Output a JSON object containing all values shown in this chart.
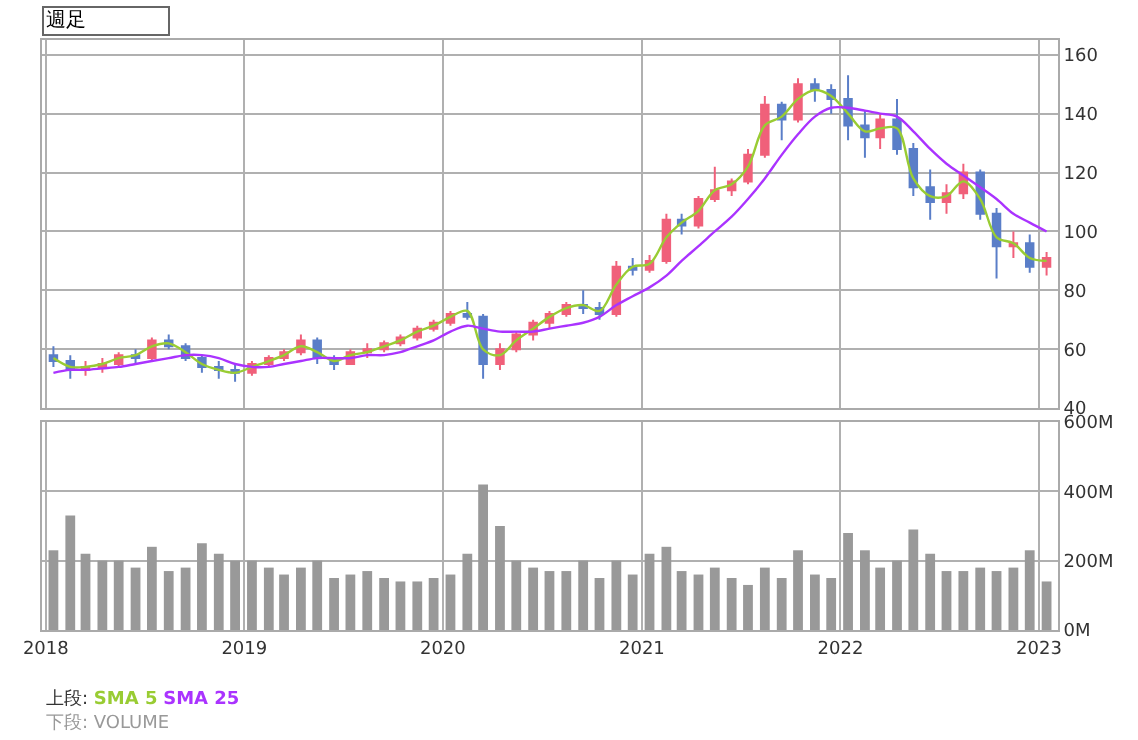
{
  "chart_data": [
    {
      "type": "candlestick",
      "annotations": [
        "週足",
        "上段:"
      ],
      "legend": "bottom left",
      "grid": true,
      "tick_labels": "y",
      "x": [
        "2018-01-15",
        "2018-02-15",
        "2018-03-15",
        "2018-04-15",
        "2018-05-15",
        "2018-06-15",
        "2018-07-15",
        "2018-08-15",
        "2018-09-15",
        "2018-10-15",
        "2018-11-15",
        "2018-12-15",
        "2019-01-15",
        "2019-02-15",
        "2019-03-15",
        "2019-04-15",
        "2019-05-15",
        "2019-06-15",
        "2019-07-15",
        "2019-08-15",
        "2019-09-15",
        "2019-10-15",
        "2019-11-15",
        "2019-12-15",
        "2020-01-15",
        "2020-02-15",
        "2020-03-15",
        "2020-04-15",
        "2020-05-15",
        "2020-06-15",
        "2020-07-15",
        "2020-08-15",
        "2020-09-15",
        "2020-10-15",
        "2020-11-15",
        "2020-12-15",
        "2021-01-15",
        "2021-02-15",
        "2021-03-15",
        "2021-04-15",
        "2021-05-15",
        "2021-06-15",
        "2021-07-15",
        "2021-08-15",
        "2021-09-15",
        "2021-10-15",
        "2021-11-15",
        "2021-12-15",
        "2022-01-15",
        "2022-02-15",
        "2022-03-15",
        "2022-04-15",
        "2022-05-15",
        "2022-06-15",
        "2022-07-15",
        "2022-08-15",
        "2022-09-15",
        "2022-10-15",
        "2022-11-15",
        "2022-12-15",
        "2023-01-15"
      ],
      "ohlc": [
        [
          58,
          61,
          54,
          56
        ],
        [
          56,
          58,
          50,
          53
        ],
        [
          53,
          56,
          51,
          54
        ],
        [
          54,
          57,
          52,
          55
        ],
        [
          55,
          59,
          54,
          58
        ],
        [
          58,
          60,
          55,
          57
        ],
        [
          57,
          64,
          56,
          63
        ],
        [
          63,
          65,
          60,
          61
        ],
        [
          61,
          62,
          56,
          57
        ],
        [
          57,
          58,
          52,
          54
        ],
        [
          54,
          56,
          50,
          53
        ],
        [
          53,
          55,
          49,
          52
        ],
        [
          52,
          56,
          51,
          55
        ],
        [
          55,
          58,
          54,
          57
        ],
        [
          57,
          60,
          56,
          59
        ],
        [
          59,
          65,
          58,
          63
        ],
        [
          63,
          64,
          55,
          57
        ],
        [
          57,
          58,
          53,
          55
        ],
        [
          55,
          60,
          55,
          59
        ],
        [
          59,
          62,
          57,
          60
        ],
        [
          60,
          63,
          59,
          62
        ],
        [
          62,
          65,
          61,
          64
        ],
        [
          64,
          68,
          63,
          67
        ],
        [
          67,
          70,
          66,
          69
        ],
        [
          69,
          73,
          68,
          72
        ],
        [
          72,
          76,
          70,
          71
        ],
        [
          71,
          72,
          50,
          55
        ],
        [
          55,
          62,
          53,
          60
        ],
        [
          60,
          66,
          59,
          65
        ],
        [
          65,
          70,
          63,
          69
        ],
        [
          69,
          73,
          67,
          72
        ],
        [
          72,
          76,
          71,
          75
        ],
        [
          75,
          80,
          72,
          74
        ],
        [
          74,
          76,
          70,
          72
        ],
        [
          72,
          90,
          71,
          88
        ],
        [
          88,
          91,
          85,
          87
        ],
        [
          87,
          92,
          86,
          90
        ],
        [
          90,
          106,
          89,
          104
        ],
        [
          104,
          106,
          99,
          102
        ],
        [
          102,
          112,
          101,
          111
        ],
        [
          111,
          122,
          110,
          114
        ],
        [
          114,
          118,
          112,
          117
        ],
        [
          117,
          128,
          116,
          126
        ],
        [
          126,
          146,
          125,
          143
        ],
        [
          143,
          144,
          131,
          138
        ],
        [
          138,
          152,
          137,
          150
        ],
        [
          150,
          152,
          144,
          148
        ],
        [
          148,
          150,
          140,
          145
        ],
        [
          145,
          153,
          131,
          136
        ],
        [
          136,
          141,
          125,
          132
        ],
        [
          132,
          140,
          128,
          138
        ],
        [
          138,
          145,
          126,
          128
        ],
        [
          128,
          130,
          112,
          115
        ],
        [
          115,
          121,
          104,
          110
        ],
        [
          110,
          116,
          106,
          113
        ],
        [
          113,
          123,
          111,
          120
        ],
        [
          120,
          121,
          104,
          106
        ],
        [
          106,
          108,
          84,
          95
        ],
        [
          95,
          100,
          91,
          96
        ],
        [
          96,
          99,
          86,
          88
        ],
        [
          88,
          93,
          85,
          91
        ]
      ],
      "series": [
        {
          "name": "SMA 5",
          "type": "line",
          "color": "#99cc33",
          "values": [
            57,
            54,
            54,
            55,
            57,
            58,
            61,
            62,
            59,
            55,
            53,
            52,
            54,
            56,
            58,
            61,
            59,
            56,
            58,
            59,
            61,
            63,
            66,
            68,
            71,
            73,
            60,
            58,
            63,
            67,
            71,
            74,
            75,
            73,
            82,
            88,
            89,
            98,
            103,
            107,
            114,
            116,
            122,
            136,
            139,
            145,
            148,
            146,
            140,
            134,
            135,
            135,
            118,
            112,
            112,
            117,
            111,
            98,
            96,
            91,
            90
          ]
        },
        {
          "name": "SMA 25",
          "type": "line",
          "color": "#aa33ff",
          "values": [
            52,
            53,
            53,
            53.5,
            54,
            55,
            56,
            57,
            58,
            58,
            57,
            55,
            54,
            54,
            55,
            56,
            57,
            57,
            57,
            58,
            58,
            59,
            61,
            63,
            66,
            68,
            67,
            66,
            66,
            66,
            67,
            68,
            69,
            71,
            75,
            78,
            81,
            85,
            90,
            95,
            100,
            105,
            111,
            118,
            126,
            133,
            139,
            142,
            142,
            141,
            140,
            139,
            134,
            128,
            123,
            119,
            115,
            111,
            106,
            103,
            100
          ]
        }
      ],
      "xlim": [
        "2017-12-25",
        "2023-02-05"
      ],
      "xticks": [
        {
          "value": "2018-01-01",
          "label": null
        },
        {
          "value": "2019-01-01",
          "label": null
        },
        {
          "value": "2020-01-01",
          "label": null
        },
        {
          "value": "2021-01-01",
          "label": null
        },
        {
          "value": "2022-01-01",
          "label": null
        },
        {
          "value": "2023-01-01",
          "label": null
        }
      ],
      "ylim": [
        40,
        165
      ],
      "yticks": [
        40,
        60,
        80,
        100,
        120,
        140,
        160
      ]
    },
    {
      "type": "bar",
      "annotations": [
        "下段: VOLUME"
      ],
      "grid": true,
      "color": "#999999",
      "x": [
        "2018-01-15",
        "2018-02-15",
        "2018-03-15",
        "2018-04-15",
        "2018-05-15",
        "2018-06-15",
        "2018-07-15",
        "2018-08-15",
        "2018-09-15",
        "2018-10-15",
        "2018-11-15",
        "2018-12-15",
        "2019-01-15",
        "2019-02-15",
        "2019-03-15",
        "2019-04-15",
        "2019-05-15",
        "2019-06-15",
        "2019-07-15",
        "2019-08-15",
        "2019-09-15",
        "2019-10-15",
        "2019-11-15",
        "2019-12-15",
        "2020-01-15",
        "2020-02-15",
        "2020-03-15",
        "2020-04-15",
        "2020-05-15",
        "2020-06-15",
        "2020-07-15",
        "2020-08-15",
        "2020-09-15",
        "2020-10-15",
        "2020-11-15",
        "2020-12-15",
        "2021-01-15",
        "2021-02-15",
        "2021-03-15",
        "2021-04-15",
        "2021-05-15",
        "2021-06-15",
        "2021-07-15",
        "2021-08-15",
        "2021-09-15",
        "2021-10-15",
        "2021-11-15",
        "2021-12-15",
        "2022-01-15",
        "2022-02-15",
        "2022-03-15",
        "2022-04-15",
        "2022-05-15",
        "2022-06-15",
        "2022-07-15",
        "2022-08-15",
        "2022-09-15",
        "2022-10-15",
        "2022-11-15",
        "2022-12-15",
        "2023-01-15"
      ],
      "values": [
        230,
        330,
        220,
        200,
        200,
        180,
        240,
        170,
        180,
        250,
        220,
        200,
        200,
        180,
        160,
        180,
        200,
        150,
        160,
        170,
        150,
        140,
        140,
        150,
        160,
        220,
        420,
        300,
        200,
        180,
        170,
        170,
        200,
        150,
        200,
        160,
        220,
        240,
        170,
        160,
        180,
        150,
        130,
        180,
        150,
        230,
        160,
        150,
        280,
        230,
        180,
        200,
        290,
        220,
        170,
        170,
        180,
        170,
        180,
        230,
        140
      ],
      "xlim": [
        "2017-12-25",
        "2023-02-05"
      ],
      "xticks": [
        {
          "value": "2018-01-01",
          "label": "2018"
        },
        {
          "value": "2019-01-01",
          "label": "2019"
        },
        {
          "value": "2020-01-01",
          "label": "2020"
        },
        {
          "value": "2021-01-01",
          "label": "2021"
        },
        {
          "value": "2022-01-01",
          "label": "2022"
        },
        {
          "value": "2023-01-01",
          "label": "2023"
        }
      ],
      "ylim": [
        0,
        600
      ],
      "yticks": [
        {
          "value": 0,
          "label": "0M"
        },
        {
          "value": 200,
          "label": "200M"
        },
        {
          "value": 400,
          "label": "400M"
        },
        {
          "value": 600,
          "label": "600M"
        }
      ]
    }
  ]
}
